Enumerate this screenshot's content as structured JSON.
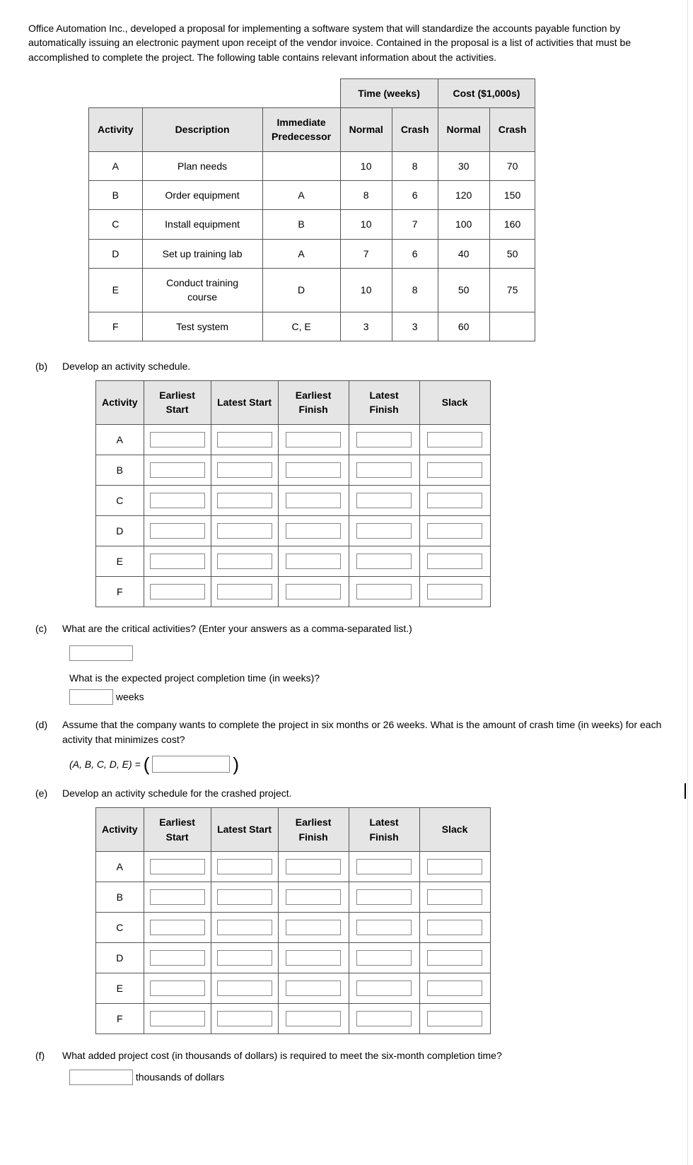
{
  "intro": "Office Automation Inc., developed a proposal for implementing a software system that will standardize the accounts payable function by automatically issuing an electronic payment upon receipt of the vendor invoice. Contained in the proposal is a list of activities that must be accomplished to complete the project. The following table contains relevant information about the activities.",
  "info_table": {
    "group_time": "Time (weeks)",
    "group_cost": "Cost ($1,000s)",
    "headers": {
      "activity": "Activity",
      "description": "Description",
      "predecessor": "Immediate Predecessor",
      "normal": "Normal",
      "crash": "Crash"
    },
    "rows": [
      {
        "act": "A",
        "desc": "Plan needs",
        "pred": "",
        "tn": "10",
        "tc": "8",
        "cn": "30",
        "cc": "70"
      },
      {
        "act": "B",
        "desc": "Order equipment",
        "pred": "A",
        "tn": "8",
        "tc": "6",
        "cn": "120",
        "cc": "150"
      },
      {
        "act": "C",
        "desc": "Install equipment",
        "pred": "B",
        "tn": "10",
        "tc": "7",
        "cn": "100",
        "cc": "160"
      },
      {
        "act": "D",
        "desc": "Set up training lab",
        "pred": "A",
        "tn": "7",
        "tc": "6",
        "cn": "40",
        "cc": "50"
      },
      {
        "act": "E",
        "desc": "Conduct training course",
        "pred": "D",
        "tn": "10",
        "tc": "8",
        "cn": "50",
        "cc": "75"
      },
      {
        "act": "F",
        "desc": "Test system",
        "pred": "C, E",
        "tn": "3",
        "tc": "3",
        "cn": "60",
        "cc": ""
      }
    ]
  },
  "parts": {
    "b": {
      "label": "(b)",
      "text": "Develop an activity schedule."
    },
    "c": {
      "label": "(c)",
      "q1": "What are the critical activities? (Enter your answers as a comma-separated list.)",
      "q2": "What is the expected project completion time (in weeks)?",
      "unit": "weeks"
    },
    "d": {
      "label": "(d)",
      "text": "Assume that the company wants to complete the project in six months or 26 weeks. What is the amount of crash time (in weeks) for each activity that minimizes cost?",
      "tuple_lhs": "(A, B, C, D, E) ="
    },
    "e": {
      "label": "(e)",
      "text": "Develop an activity schedule for the crashed project."
    },
    "f": {
      "label": "(f)",
      "text": "What added project cost (in thousands of dollars) is required to meet the six-month completion time?",
      "unit": "thousands of dollars"
    }
  },
  "sched_headers": {
    "activity": "Activity",
    "es": "Earliest Start",
    "ls": "Latest Start",
    "ef": "Earliest Finish",
    "lf": "Latest Finish",
    "slack": "Slack"
  },
  "activities": [
    "A",
    "B",
    "C",
    "D",
    "E",
    "F"
  ]
}
